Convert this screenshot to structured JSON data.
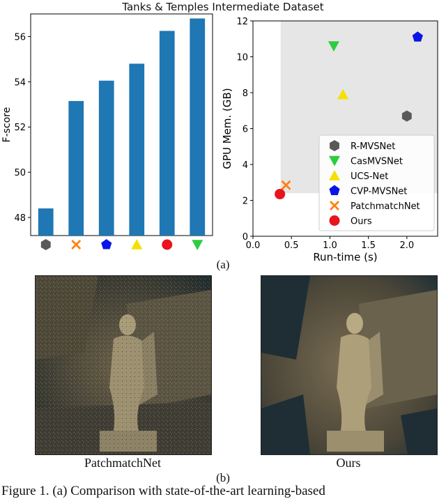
{
  "figure": {
    "title": "Tanks & Temples Intermediate Dataset",
    "caption_a": "(a)",
    "caption_b": "(b)",
    "caption_text": "Figure 1.   (a) Comparison with state-of-the-art learning-based"
  },
  "photos": {
    "left_label": "PatchmatchNet",
    "right_label": "Ours"
  },
  "colors": {
    "bar": "#1f77b4",
    "shaded_region": "#e6e6e6",
    "R-MVSNet": "#595959",
    "CasMVSNet": "#2ecc40",
    "UCS-Net": "#f5e000",
    "CVP-MVSNet": "#0a14e6",
    "PatchmatchNet": "#ff7f0e",
    "Ours": "#e8141e"
  },
  "chart_data": [
    {
      "type": "bar",
      "ylabel": "F-score",
      "ylim": [
        47.2,
        57.0
      ],
      "yticks": [
        48,
        50,
        52,
        54,
        56
      ],
      "categories": [
        "R-MVSNet",
        "PatchmatchNet",
        "CVP-MVSNet",
        "UCS-Net",
        "Ours",
        "CasMVSNet"
      ],
      "category_markers": [
        "hexagon",
        "x",
        "pentagon",
        "triangle-up",
        "circle",
        "triangle-down"
      ],
      "values": [
        48.4,
        53.15,
        54.05,
        54.8,
        56.25,
        56.8
      ]
    },
    {
      "type": "scatter",
      "xlabel": "Run-time (s)",
      "ylabel": "GPU Mem. (GB)",
      "xlim": [
        0.0,
        2.4
      ],
      "ylim": [
        0,
        12
      ],
      "xticks": [
        0.0,
        0.5,
        1.0,
        1.5,
        2.0
      ],
      "yticks": [
        0,
        2,
        4,
        6,
        8,
        10,
        12
      ],
      "shaded_region": {
        "x": [
          0.36,
          2.4
        ],
        "y": [
          2.4,
          12
        ]
      },
      "legend_position": "bottom-right",
      "series": [
        {
          "name": "R-MVSNet",
          "marker": "hexagon",
          "x": 2.0,
          "y": 6.7
        },
        {
          "name": "CasMVSNet",
          "marker": "triangle-down",
          "x": 1.05,
          "y": 10.6
        },
        {
          "name": "UCS-Net",
          "marker": "triangle-up",
          "x": 1.17,
          "y": 7.9
        },
        {
          "name": "CVP-MVSNet",
          "marker": "pentagon",
          "x": 2.14,
          "y": 11.1
        },
        {
          "name": "PatchmatchNet",
          "marker": "x",
          "x": 0.43,
          "y": 2.85
        },
        {
          "name": "Ours",
          "marker": "circle",
          "x": 0.35,
          "y": 2.35
        }
      ]
    }
  ]
}
